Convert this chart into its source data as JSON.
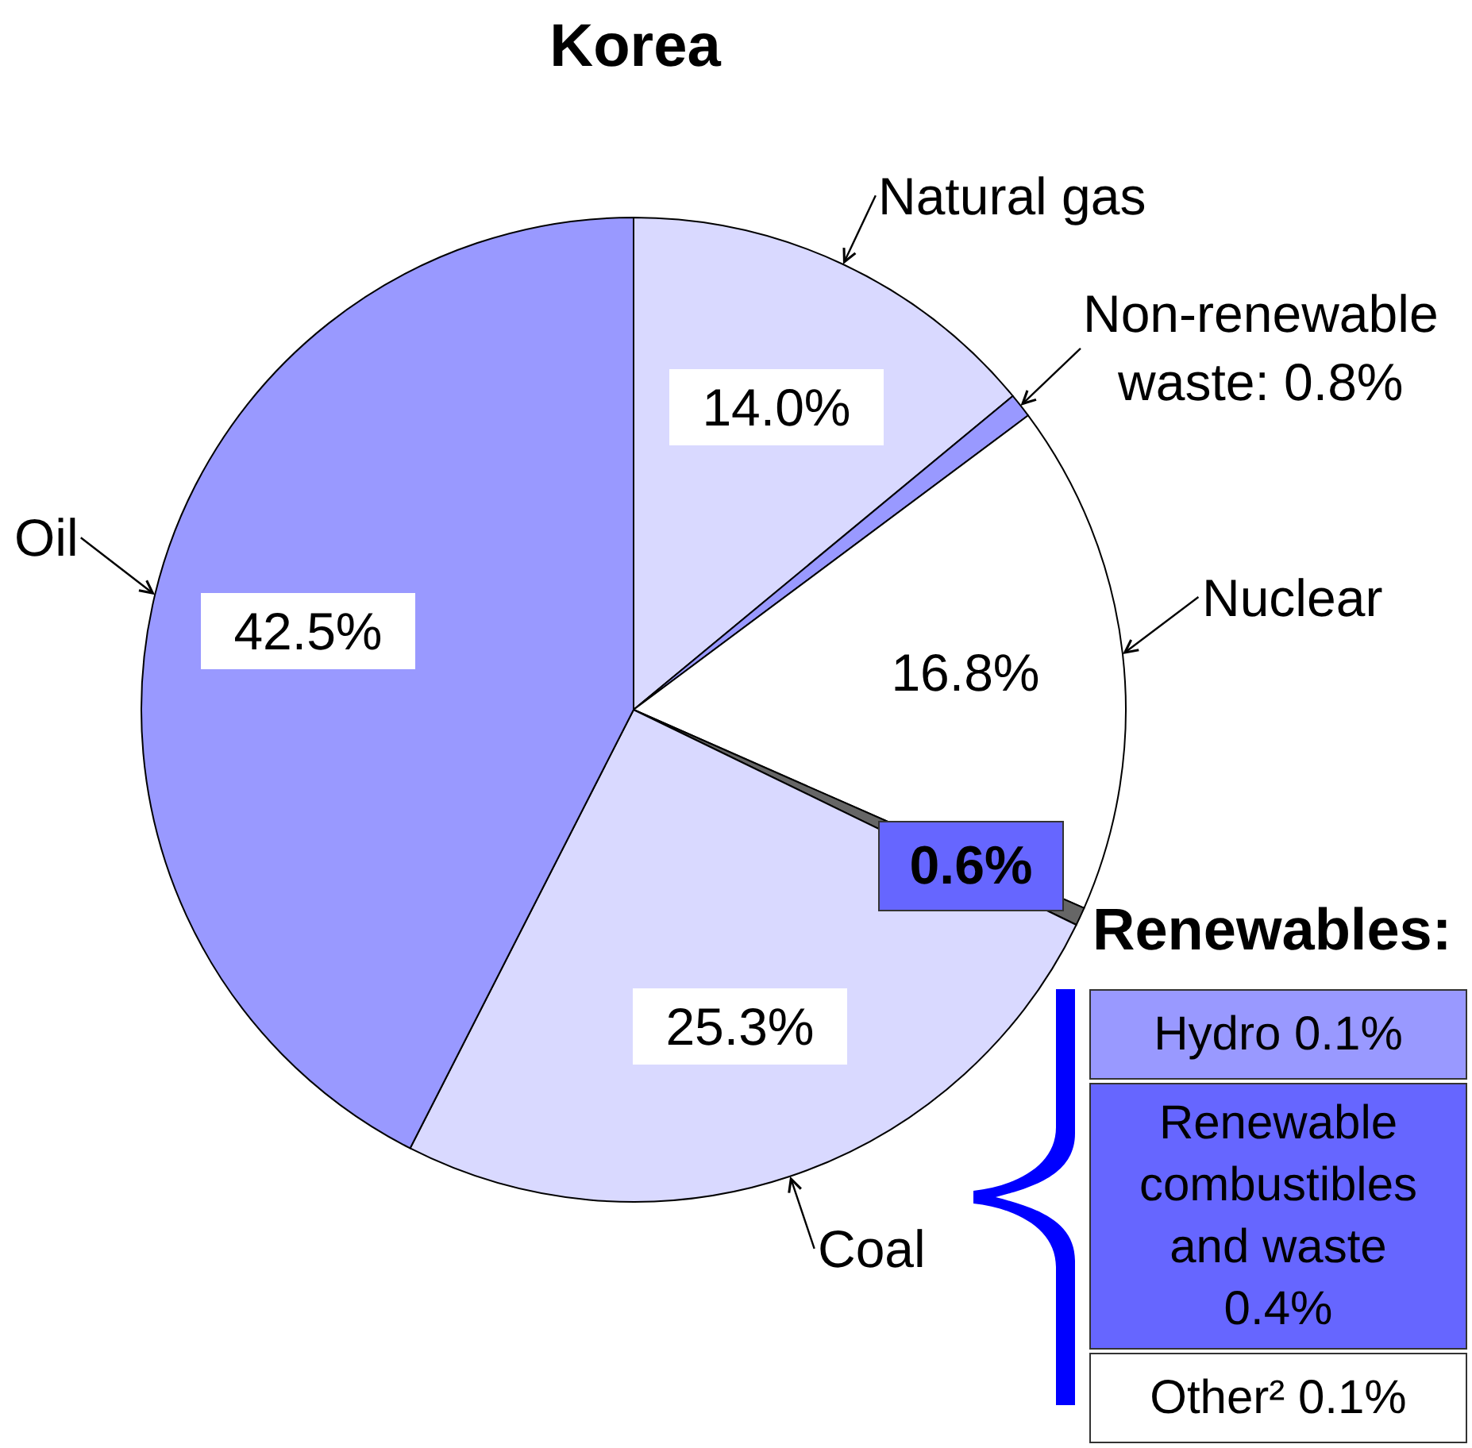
{
  "chart_data": {
    "type": "pie",
    "title": "Korea",
    "categories": [
      "Natural gas",
      "Non-renewable waste: 0.8%",
      "Nuclear",
      null,
      "Coal",
      "Oil"
    ],
    "values": [
      14.0,
      0.8,
      16.8,
      0.6,
      25.3,
      42.5
    ],
    "colors": [
      "#d9d9ff",
      "#9999ff",
      "#ffffff",
      "#666666",
      "#d9d9ff",
      "#9999ff"
    ],
    "value_labels": [
      "14.0%",
      null,
      "16.8%",
      "0.6%",
      "25.3%",
      "42.5%"
    ],
    "annotations": [
      "Renewables:",
      "Hydro 0.1%",
      "Renewable combustibles and waste 0.4%",
      "Other² 0.1%"
    ]
  }
}
